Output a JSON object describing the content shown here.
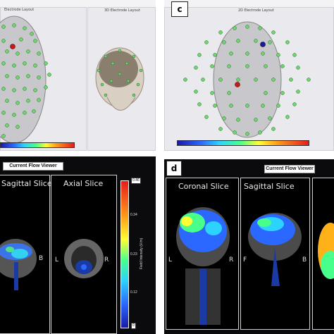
{
  "panel_labels": {
    "c": "c",
    "d": "d"
  },
  "top_left": {
    "left_window_title": "Electrode Layout",
    "right_window_title": "3D Electrode Layout"
  },
  "top_right": {
    "window_title": "2D Electrode Layout"
  },
  "bottom_left": {
    "viewer_title": "Current Flow Viewer",
    "slices": [
      "Sagittal Slice",
      "Axial Slice"
    ],
    "side_letters": {
      "sagittal_right": "B",
      "axial_left": "L",
      "axial_right": "R"
    },
    "colorbar": {
      "max_label": "0.46",
      "ticks": [
        "0.34",
        "0.23",
        "0.12"
      ],
      "min_label": "0",
      "axis_label": "Field Intensity (V/m)"
    }
  },
  "bottom_right": {
    "viewer_title": "Current Flow Viewer",
    "slices": [
      "Coronal Slice",
      "Sagittal Slice"
    ],
    "side_letters": {
      "coronal_left": "L",
      "coronal_right": "R",
      "sagittal_left": "F",
      "sagittal_right": "B"
    }
  },
  "colors": {
    "hot": "#e61c1c",
    "cold": "#1a1aa6",
    "electrode_green": "#6fd66f"
  }
}
